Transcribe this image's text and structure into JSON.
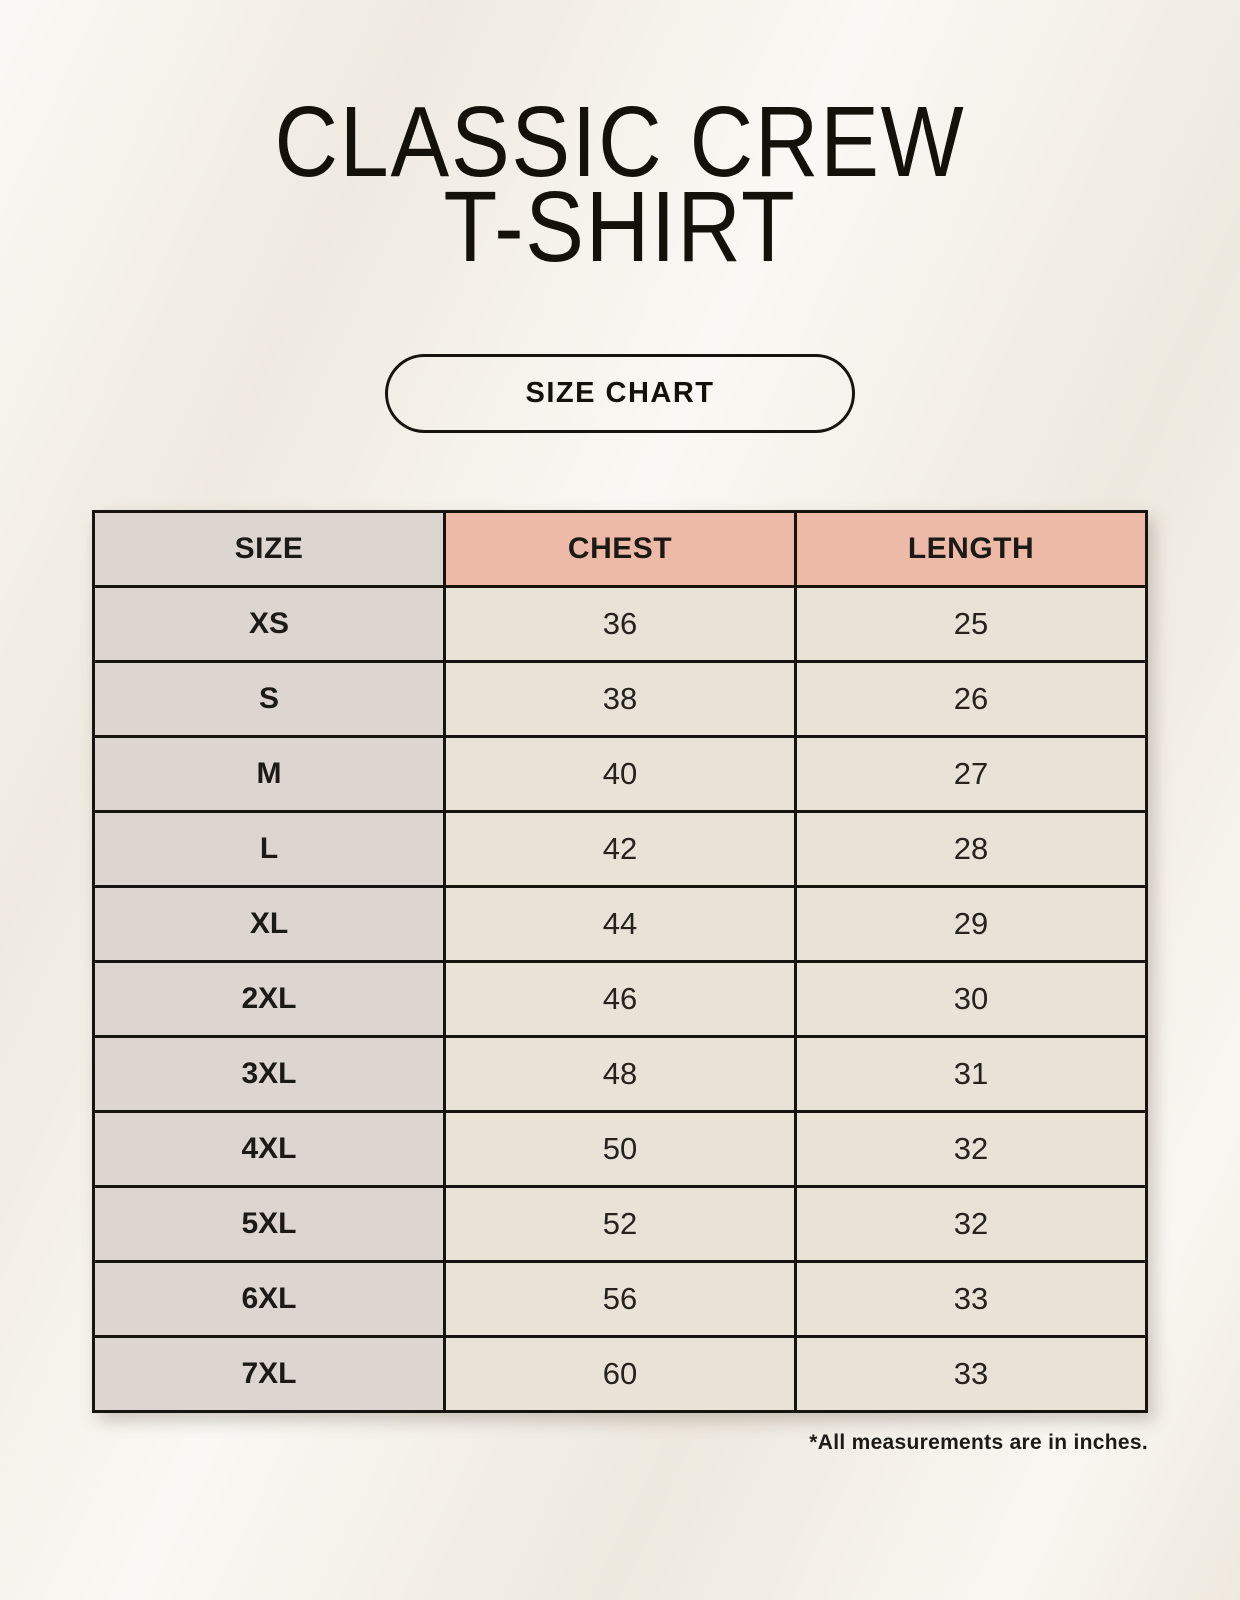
{
  "page": {
    "title_line1": "CLASSIC CREW",
    "title_line2": "T-SHIRT",
    "size_chart_button": "SIZE CHART",
    "footnote": "*All measurements are in inches."
  },
  "chart_data": {
    "type": "table",
    "title": "CLASSIC CREW T-SHIRT",
    "subtitle": "SIZE CHART",
    "columns": [
      "SIZE",
      "CHEST",
      "LENGTH"
    ],
    "rows": [
      [
        "XS",
        36,
        25
      ],
      [
        "S",
        38,
        26
      ],
      [
        "M",
        40,
        27
      ],
      [
        "L",
        42,
        28
      ],
      [
        "XL",
        44,
        29
      ],
      [
        "2XL",
        46,
        30
      ],
      [
        "3XL",
        48,
        31
      ],
      [
        "4XL",
        50,
        32
      ],
      [
        "5XL",
        52,
        32
      ],
      [
        "6XL",
        56,
        33
      ],
      [
        "7XL",
        60,
        33
      ]
    ],
    "units": "inches",
    "note": "*All measurements are in inches."
  },
  "colors": {
    "page_bg": "#f5f1e9",
    "accent_header_bg": "#eebaa8",
    "size_column_bg": "#ddd6d0",
    "value_cell_bg": "#e9e2d7",
    "table_border": "#17140f",
    "text": "#1c1a17"
  }
}
